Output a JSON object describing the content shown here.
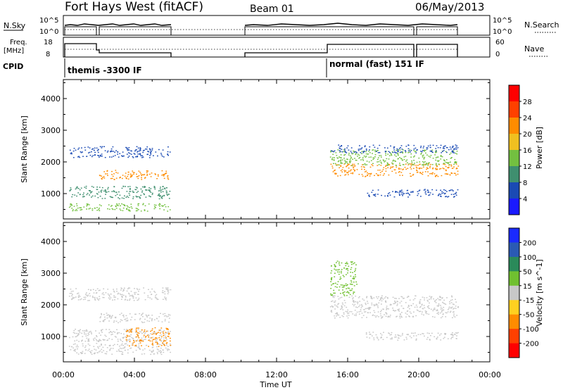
{
  "header": {
    "title": "Fort Hays West (fitACF)",
    "beam": "Beam 01",
    "date": "06/May/2013"
  },
  "panels": {
    "nsky": {
      "label": "N.Sky",
      "left_ticks": [
        "10^5",
        "10^0"
      ],
      "right_ticks": [
        "10^5",
        "10^0"
      ],
      "right_label": "N.Search"
    },
    "freq": {
      "label_line1": "Freq.",
      "label_line2": "[MHz]",
      "left_ticks": [
        "18",
        "8"
      ],
      "right_ticks": [
        "60",
        "0"
      ],
      "right_label": "Nave"
    },
    "cpid": {
      "label": "CPID",
      "modes": [
        "themis -3300 IF",
        "normal (fast) 151 IF"
      ]
    }
  },
  "chart_data": [
    {
      "type": "heatmap",
      "name": "power",
      "ylabel": "Slant Range [km]",
      "xlabel": "Time UT",
      "y_ticks": [
        1000,
        2000,
        3000,
        4000
      ],
      "ylim": [
        200,
        4600
      ],
      "xlim": [
        0,
        24
      ],
      "colorbar_label": "Power [dB]",
      "colorbar_ticks": [
        "4",
        "8",
        "12",
        "16",
        "20",
        "24",
        "28"
      ],
      "colorbar_colors": [
        "#1a1aff",
        "#1a4ab4",
        "#3f8f6f",
        "#73c040",
        "#f0c020",
        "#ff8c00",
        "#ff4000",
        "#ff0000"
      ],
      "scatter_bands": [
        {
          "t0": 0.3,
          "t1": 6.0,
          "r0": 2150,
          "r1": 2500,
          "color": "#1a4ab4"
        },
        {
          "t0": 0.3,
          "t1": 6.0,
          "r0": 850,
          "r1": 1250,
          "color": "#3f8f6f"
        },
        {
          "t0": 0.3,
          "t1": 6.0,
          "r0": 450,
          "r1": 700,
          "color": "#73c040"
        },
        {
          "t0": 2.0,
          "t1": 6.0,
          "r0": 1450,
          "r1": 1750,
          "color": "#ff8c00"
        },
        {
          "t0": 15.0,
          "t1": 22.2,
          "r0": 1550,
          "r1": 1950,
          "color": "#ff8c00"
        },
        {
          "t0": 15.0,
          "t1": 22.2,
          "r0": 1900,
          "r1": 2400,
          "color": "#73c040"
        },
        {
          "t0": 15.0,
          "t1": 22.2,
          "r0": 2300,
          "r1": 2550,
          "color": "#1a4ab4"
        },
        {
          "t0": 17.0,
          "t1": 22.2,
          "r0": 900,
          "r1": 1150,
          "color": "#1a4ab4"
        }
      ]
    },
    {
      "type": "heatmap",
      "name": "velocity",
      "ylabel": "Slant Range [km]",
      "xlabel": "Time UT",
      "y_ticks": [
        1000,
        2000,
        3000,
        4000
      ],
      "ylim": [
        200,
        4600
      ],
      "xlim": [
        0,
        24
      ],
      "colorbar_label": "Velocity [m s^-1]",
      "colorbar_ticks": [
        "200",
        "100",
        "50",
        "15",
        "-15",
        "-50",
        "-100",
        "-200"
      ],
      "colorbar_colors": [
        "#1a2aff",
        "#2a5ab4",
        "#2a8a5a",
        "#70c030",
        "#c8c8c8",
        "#ffd020",
        "#ff8c00",
        "#ff4000",
        "#ff0000"
      ],
      "scatter_bands": [
        {
          "t0": 0.3,
          "t1": 6.0,
          "r0": 2150,
          "r1": 2550,
          "color": "#c8c8c8"
        },
        {
          "t0": 0.3,
          "t1": 6.0,
          "r0": 850,
          "r1": 1250,
          "color": "#c8c8c8"
        },
        {
          "t0": 0.3,
          "t1": 6.0,
          "r0": 450,
          "r1": 800,
          "color": "#c8c8c8"
        },
        {
          "t0": 2.0,
          "t1": 6.0,
          "r0": 1450,
          "r1": 1750,
          "color": "#c8c8c8"
        },
        {
          "t0": 3.5,
          "t1": 6.0,
          "r0": 700,
          "r1": 1300,
          "color": "#ff8c00"
        },
        {
          "t0": 15.0,
          "t1": 22.2,
          "r0": 1600,
          "r1": 2300,
          "color": "#c8c8c8"
        },
        {
          "t0": 15.0,
          "t1": 16.5,
          "r0": 2300,
          "r1": 3400,
          "color": "#70c030"
        },
        {
          "t0": 17.0,
          "t1": 22.2,
          "r0": 900,
          "r1": 1150,
          "color": "#c8c8c8"
        }
      ]
    }
  ],
  "x_axis": {
    "ticks": [
      "00:00",
      "04:00",
      "08:00",
      "12:00",
      "16:00",
      "20:00",
      "00:00"
    ],
    "label": "Time UT"
  }
}
